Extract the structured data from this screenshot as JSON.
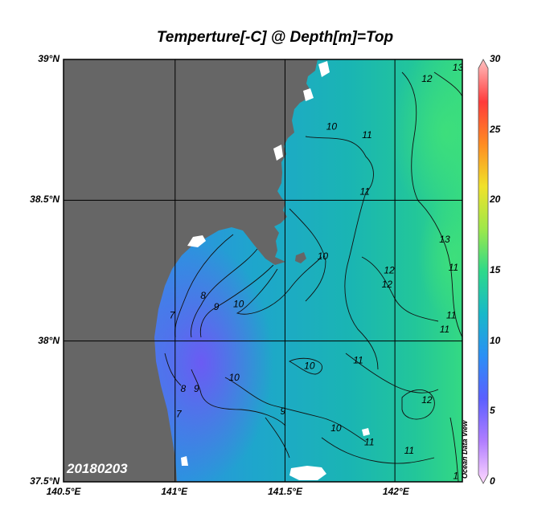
{
  "map": {
    "title": "Temperture[-C] @ Depth[m]=Top",
    "date_stamp": "20180203",
    "watermark": "Ocean Data View",
    "lat_labels": [
      {
        "label": "39°N",
        "value": 39.0
      },
      {
        "label": "38.5°N",
        "value": 38.5
      },
      {
        "label": "38°N",
        "value": 38.0
      },
      {
        "label": "37.5°N",
        "value": 37.5
      }
    ],
    "lon_labels": [
      {
        "label": "140.5°E",
        "value": 140.5
      },
      {
        "label": "141°E",
        "value": 141.0
      },
      {
        "label": "141.5°E",
        "value": 141.5
      },
      {
        "label": "142°E",
        "value": 142.0
      }
    ],
    "lon_range": [
      140.5,
      142.3
    ],
    "lat_range": [
      37.5,
      39.0
    ],
    "land_color": "#666666",
    "colorbar": {
      "ticks": [
        "0",
        "5",
        "10",
        "15",
        "20",
        "25",
        "30"
      ],
      "min": 0,
      "max": 30,
      "colors": [
        "#ffd9ff",
        "#b07dff",
        "#5a5fff",
        "#2b8ff5",
        "#17b8c9",
        "#2dd98a",
        "#9ee84a",
        "#f0e22a",
        "#ff8c22",
        "#ff3b3b",
        "#ffc1c1"
      ]
    },
    "contour_labels": [
      {
        "text": "7",
        "lon": 140.99,
        "lat": 38.08
      },
      {
        "text": "7",
        "lon": 141.02,
        "lat": 37.73
      },
      {
        "text": "8",
        "lon": 141.13,
        "lat": 38.15
      },
      {
        "text": "8",
        "lon": 141.04,
        "lat": 37.82
      },
      {
        "text": "9",
        "lon": 141.19,
        "lat": 38.11
      },
      {
        "text": "9",
        "lon": 141.1,
        "lat": 37.82
      },
      {
        "text": "9",
        "lon": 141.49,
        "lat": 37.74
      },
      {
        "text": "10",
        "lon": 141.29,
        "lat": 38.12
      },
      {
        "text": "10",
        "lon": 141.67,
        "lat": 38.29
      },
      {
        "text": "10",
        "lon": 141.71,
        "lat": 38.75
      },
      {
        "text": "10",
        "lon": 141.27,
        "lat": 37.86
      },
      {
        "text": "10",
        "lon": 141.61,
        "lat": 37.9
      },
      {
        "text": "10",
        "lon": 141.73,
        "lat": 37.68
      },
      {
        "text": "11",
        "lon": 141.86,
        "lat": 38.52
      },
      {
        "text": "11",
        "lon": 141.87,
        "lat": 38.72
      },
      {
        "text": "11",
        "lon": 141.83,
        "lat": 37.92
      },
      {
        "text": "11",
        "lon": 141.88,
        "lat": 37.63
      },
      {
        "text": "11",
        "lon": 142.06,
        "lat": 37.6
      },
      {
        "text": "11",
        "lon": 142.22,
        "lat": 38.03
      },
      {
        "text": "11",
        "lon": 142.25,
        "lat": 38.08
      },
      {
        "text": "11",
        "lon": 142.26,
        "lat": 38.25
      },
      {
        "text": "12",
        "lon": 142.14,
        "lat": 38.92
      },
      {
        "text": "12",
        "lon": 141.97,
        "lat": 38.24
      },
      {
        "text": "12",
        "lon": 141.96,
        "lat": 38.19
      },
      {
        "text": "12",
        "lon": 142.14,
        "lat": 37.78
      },
      {
        "text": "13",
        "lon": 142.22,
        "lat": 38.35
      },
      {
        "text": "13",
        "lon": 142.28,
        "lat": 38.96
      },
      {
        "text": "1",
        "lon": 142.27,
        "lat": 37.51
      }
    ]
  }
}
